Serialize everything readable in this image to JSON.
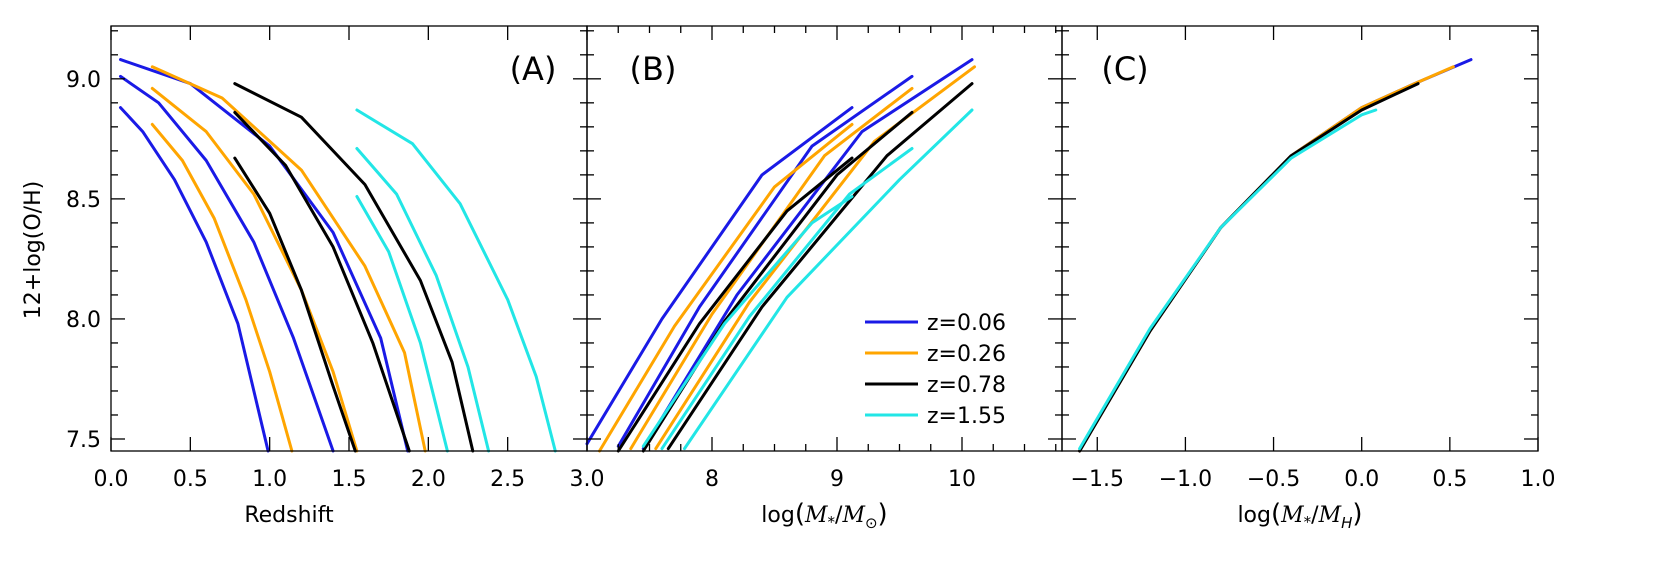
{
  "colors": {
    "blue": "#1a1ae6",
    "orange": "#ffa500",
    "black": "#000000",
    "cyan": "#22e6e6"
  },
  "ylabel": "12+log(O/H)",
  "legend": {
    "placement": "center-right of panel B",
    "entries": [
      {
        "label": "z=0.06",
        "color": "#1a1ae6"
      },
      {
        "label": "z=0.26",
        "color": "#ffa500"
      },
      {
        "label": "z=0.78",
        "color": "#000000"
      },
      {
        "label": "z=1.55",
        "color": "#22e6e6"
      }
    ]
  },
  "chart_data": [
    {
      "type": "line",
      "panel": "(A)",
      "xlabel": "Redshift",
      "xlim": [
        0.0,
        3.0
      ],
      "ylim": [
        7.45,
        9.22
      ],
      "xticks": [
        0.0,
        0.5,
        1.0,
        1.5,
        2.0,
        2.5,
        3.0
      ],
      "xtick_labels": [
        "0.0",
        "0.5",
        "1.0",
        "1.5",
        "2.0",
        "2.5",
        "3.0"
      ],
      "yticks": [
        7.5,
        8.0,
        8.5,
        9.0
      ],
      "ytick_labels": [
        "7.5",
        "8.0",
        "8.5",
        "9.0"
      ],
      "series": [
        {
          "color": "blue",
          "points": [
            [
              0.06,
              8.88
            ],
            [
              0.2,
              8.78
            ],
            [
              0.4,
              8.58
            ],
            [
              0.6,
              8.32
            ],
            [
              0.8,
              7.98
            ],
            [
              0.99,
              7.45
            ]
          ]
        },
        {
          "color": "blue",
          "points": [
            [
              0.06,
              9.01
            ],
            [
              0.3,
              8.9
            ],
            [
              0.6,
              8.66
            ],
            [
              0.9,
              8.32
            ],
            [
              1.15,
              7.92
            ],
            [
              1.4,
              7.45
            ]
          ]
        },
        {
          "color": "blue",
          "points": [
            [
              0.06,
              9.08
            ],
            [
              0.5,
              8.98
            ],
            [
              1.0,
              8.72
            ],
            [
              1.4,
              8.36
            ],
            [
              1.7,
              7.92
            ],
            [
              1.87,
              7.45
            ]
          ]
        },
        {
          "color": "orange",
          "points": [
            [
              0.26,
              8.81
            ],
            [
              0.45,
              8.66
            ],
            [
              0.65,
              8.42
            ],
            [
              0.85,
              8.08
            ],
            [
              1.0,
              7.78
            ],
            [
              1.14,
              7.45
            ]
          ]
        },
        {
          "color": "orange",
          "points": [
            [
              0.26,
              8.96
            ],
            [
              0.6,
              8.78
            ],
            [
              0.9,
              8.52
            ],
            [
              1.2,
              8.12
            ],
            [
              1.4,
              7.78
            ],
            [
              1.55,
              7.45
            ]
          ]
        },
        {
          "color": "orange",
          "points": [
            [
              0.26,
              9.05
            ],
            [
              0.7,
              8.92
            ],
            [
              1.2,
              8.62
            ],
            [
              1.6,
              8.22
            ],
            [
              1.85,
              7.86
            ],
            [
              1.98,
              7.45
            ]
          ]
        },
        {
          "color": "black",
          "points": [
            [
              0.78,
              8.67
            ],
            [
              1.0,
              8.44
            ],
            [
              1.2,
              8.12
            ],
            [
              1.4,
              7.72
            ],
            [
              1.54,
              7.45
            ]
          ]
        },
        {
          "color": "black",
          "points": [
            [
              0.78,
              8.86
            ],
            [
              1.1,
              8.64
            ],
            [
              1.4,
              8.3
            ],
            [
              1.65,
              7.9
            ],
            [
              1.88,
              7.45
            ]
          ]
        },
        {
          "color": "black",
          "points": [
            [
              0.78,
              8.98
            ],
            [
              1.2,
              8.84
            ],
            [
              1.6,
              8.56
            ],
            [
              1.95,
              8.16
            ],
            [
              2.15,
              7.82
            ],
            [
              2.28,
              7.45
            ]
          ]
        },
        {
          "color": "cyan",
          "points": [
            [
              1.55,
              8.51
            ],
            [
              1.75,
              8.28
            ],
            [
              1.95,
              7.9
            ],
            [
              2.12,
              7.45
            ]
          ]
        },
        {
          "color": "cyan",
          "points": [
            [
              1.55,
              8.71
            ],
            [
              1.8,
              8.52
            ],
            [
              2.05,
              8.18
            ],
            [
              2.25,
              7.8
            ],
            [
              2.38,
              7.45
            ]
          ]
        },
        {
          "color": "cyan",
          "points": [
            [
              1.55,
              8.87
            ],
            [
              1.9,
              8.73
            ],
            [
              2.2,
              8.48
            ],
            [
              2.5,
              8.08
            ],
            [
              2.68,
              7.76
            ],
            [
              2.8,
              7.45
            ]
          ]
        }
      ]
    },
    {
      "type": "line",
      "panel": "(B)",
      "xlabel": "log(M*/M⊙)",
      "xlim": [
        7.0,
        10.8
      ],
      "ylim": [
        7.45,
        9.22
      ],
      "xticks": [
        8,
        9,
        10
      ],
      "xtick_labels": [
        "8",
        "9",
        "10"
      ],
      "xminor": [
        7.25,
        7.5,
        7.75,
        8.25,
        8.5,
        8.75,
        9.25,
        9.5,
        9.75,
        10.25,
        10.5,
        10.75
      ],
      "yticks": [
        7.5,
        8.0,
        8.5,
        9.0
      ],
      "series": [
        {
          "color": "blue",
          "points": [
            [
              7.0,
              7.48
            ],
            [
              7.6,
              8.0
            ],
            [
              8.4,
              8.6
            ],
            [
              9.12,
              8.88
            ]
          ]
        },
        {
          "color": "blue",
          "points": [
            [
              7.25,
              7.47
            ],
            [
              7.9,
              8.05
            ],
            [
              8.8,
              8.72
            ],
            [
              9.6,
              9.01
            ]
          ]
        },
        {
          "color": "blue",
          "points": [
            [
              7.45,
              7.46
            ],
            [
              8.2,
              8.1
            ],
            [
              9.2,
              8.78
            ],
            [
              10.08,
              9.08
            ]
          ]
        },
        {
          "color": "orange",
          "points": [
            [
              7.1,
              7.45
            ],
            [
              7.7,
              7.97
            ],
            [
              8.5,
              8.55
            ],
            [
              9.12,
              8.81
            ]
          ]
        },
        {
          "color": "orange",
          "points": [
            [
              7.35,
              7.46
            ],
            [
              8.0,
              8.02
            ],
            [
              8.9,
              8.68
            ],
            [
              9.6,
              8.96
            ]
          ]
        },
        {
          "color": "orange",
          "points": [
            [
              7.55,
              7.46
            ],
            [
              8.3,
              8.07
            ],
            [
              9.3,
              8.74
            ],
            [
              10.1,
              9.05
            ]
          ]
        },
        {
          "color": "black",
          "points": [
            [
              7.25,
              7.45
            ],
            [
              7.9,
              7.98
            ],
            [
              8.6,
              8.45
            ],
            [
              9.12,
              8.67
            ]
          ]
        },
        {
          "color": "black",
          "points": [
            [
              7.45,
              7.45
            ],
            [
              8.1,
              7.99
            ],
            [
              9.0,
              8.6
            ],
            [
              9.6,
              8.86
            ]
          ]
        },
        {
          "color": "black",
          "points": [
            [
              7.65,
              7.46
            ],
            [
              8.4,
              8.05
            ],
            [
              9.4,
              8.68
            ],
            [
              10.08,
              8.98
            ]
          ]
        },
        {
          "color": "cyan",
          "points": [
            [
              7.45,
              7.47
            ],
            [
              8.1,
              7.98
            ],
            [
              8.8,
              8.4
            ],
            [
              9.12,
              8.51
            ]
          ]
        },
        {
          "color": "cyan",
          "points": [
            [
              7.6,
              7.46
            ],
            [
              8.3,
              8.01
            ],
            [
              9.1,
              8.52
            ],
            [
              9.6,
              8.71
            ]
          ]
        },
        {
          "color": "cyan",
          "points": [
            [
              7.78,
              7.46
            ],
            [
              8.6,
              8.09
            ],
            [
              9.5,
              8.58
            ],
            [
              10.08,
              8.87
            ]
          ]
        }
      ]
    },
    {
      "type": "line",
      "panel": "(C)",
      "xlabel": "log(M*/M_H)",
      "xlim": [
        -1.7,
        1.0
      ],
      "ylim": [
        7.45,
        9.22
      ],
      "xticks": [
        -1.5,
        -1.0,
        -0.5,
        0.0,
        0.5,
        1.0
      ],
      "xtick_labels": [
        "−1.5",
        "−1.0",
        "−0.5",
        "0.0",
        "0.5",
        "1.0"
      ],
      "yticks": [
        7.5,
        8.0,
        8.5,
        9.0
      ],
      "series": [
        {
          "color": "blue",
          "points": [
            [
              -1.6,
              7.45
            ],
            [
              -1.2,
              7.95
            ],
            [
              -0.8,
              8.38
            ],
            [
              -0.4,
              8.68
            ],
            [
              0.0,
              8.88
            ],
            [
              0.3,
              8.98
            ],
            [
              0.62,
              9.08
            ]
          ]
        },
        {
          "color": "orange",
          "points": [
            [
              -1.6,
              7.45
            ],
            [
              -1.2,
              7.95
            ],
            [
              -0.8,
              8.38
            ],
            [
              -0.4,
              8.68
            ],
            [
              0.0,
              8.88
            ],
            [
              0.3,
              8.98
            ],
            [
              0.52,
              9.05
            ]
          ]
        },
        {
          "color": "black",
          "points": [
            [
              -1.6,
              7.45
            ],
            [
              -1.2,
              7.95
            ],
            [
              -0.8,
              8.38
            ],
            [
              -0.4,
              8.68
            ],
            [
              0.0,
              8.87
            ],
            [
              0.32,
              8.98
            ]
          ]
        },
        {
          "color": "cyan",
          "points": [
            [
              -1.6,
              7.46
            ],
            [
              -1.2,
              7.96
            ],
            [
              -0.8,
              8.38
            ],
            [
              -0.4,
              8.67
            ],
            [
              0.0,
              8.85
            ],
            [
              0.08,
              8.87
            ]
          ]
        }
      ]
    }
  ]
}
